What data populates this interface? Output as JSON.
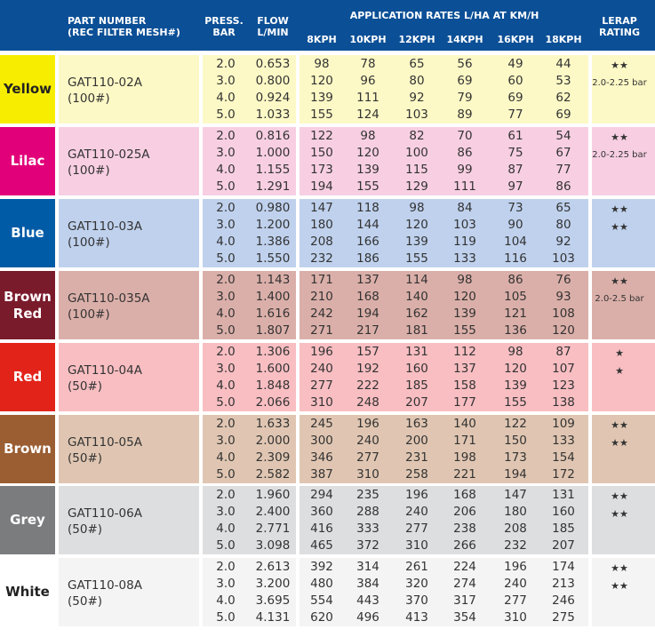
{
  "header": {
    "part": [
      "PART NUMBER",
      "(REC FILTER MESH#)"
    ],
    "press": [
      "PRESS.",
      "BAR"
    ],
    "flow": [
      "FLOW",
      "L/MIN"
    ],
    "rates_title": "APPLICATION RATES L/HA AT KM/H",
    "speeds": [
      "8KPH",
      "10KPH",
      "12KPH",
      "14KPH",
      "16KPH",
      "18KPH"
    ],
    "lerap": [
      "LERAP",
      "RATING"
    ]
  },
  "table": {
    "rows": [
      {
        "color": "Yellow",
        "part": "GAT110-02A",
        "mesh": "(100#)",
        "pressures": [
          "2.0",
          "3.0",
          "4.0",
          "5.0"
        ],
        "flows": [
          "0.653",
          "0.800",
          "0.924",
          "1.033"
        ],
        "rates": [
          [
            "98",
            "78",
            "65",
            "56",
            "49",
            "44"
          ],
          [
            "120",
            "96",
            "80",
            "69",
            "60",
            "53"
          ],
          [
            "139",
            "111",
            "92",
            "79",
            "69",
            "62"
          ],
          [
            "155",
            "124",
            "103",
            "89",
            "77",
            "69"
          ]
        ],
        "lerap": [
          "★★",
          "2.0-2.25 bar"
        ]
      },
      {
        "color": "Lilac",
        "part": "GAT110-025A",
        "mesh": "(100#)",
        "pressures": [
          "2.0",
          "3.0",
          "4.0",
          "5.0"
        ],
        "flows": [
          "0.816",
          "1.000",
          "1.155",
          "1.291"
        ],
        "rates": [
          [
            "122",
            "98",
            "82",
            "70",
            "61",
            "54"
          ],
          [
            "150",
            "120",
            "100",
            "86",
            "75",
            "67"
          ],
          [
            "173",
            "139",
            "115",
            "99",
            "87",
            "77"
          ],
          [
            "194",
            "155",
            "129",
            "111",
            "97",
            "86"
          ]
        ],
        "lerap": [
          "★★",
          "2.0-2.25 bar"
        ]
      },
      {
        "color": "Blue",
        "part": "GAT110-03A",
        "mesh": "(100#)",
        "pressures": [
          "2.0",
          "3.0",
          "4.0",
          "5.0"
        ],
        "flows": [
          "0.980",
          "1.200",
          "1.386",
          "1.550"
        ],
        "rates": [
          [
            "147",
            "118",
            "98",
            "84",
            "73",
            "65"
          ],
          [
            "180",
            "144",
            "120",
            "103",
            "90",
            "80"
          ],
          [
            "208",
            "166",
            "139",
            "119",
            "104",
            "92"
          ],
          [
            "232",
            "186",
            "155",
            "133",
            "116",
            "103"
          ]
        ],
        "lerap": [
          "★★",
          "★★"
        ]
      },
      {
        "color": "Brown Red",
        "part": "GAT110-035A",
        "mesh": "(100#)",
        "pressures": [
          "2.0",
          "3.0",
          "4.0",
          "5.0"
        ],
        "flows": [
          "1.143",
          "1.400",
          "1.616",
          "1.807"
        ],
        "rates": [
          [
            "171",
            "137",
            "114",
            "98",
            "86",
            "76"
          ],
          [
            "210",
            "168",
            "140",
            "120",
            "105",
            "93"
          ],
          [
            "242",
            "194",
            "162",
            "139",
            "121",
            "108"
          ],
          [
            "271",
            "217",
            "181",
            "155",
            "136",
            "120"
          ]
        ],
        "lerap": [
          "★★",
          "2.0-2.5 bar"
        ]
      },
      {
        "color": "Red",
        "part": "GAT110-04A",
        "mesh": "(50#)",
        "pressures": [
          "2.0",
          "3.0",
          "4.0",
          "5.0"
        ],
        "flows": [
          "1.306",
          "1.600",
          "1.848",
          "2.066"
        ],
        "rates": [
          [
            "196",
            "157",
            "131",
            "112",
            "98",
            "87"
          ],
          [
            "240",
            "192",
            "160",
            "137",
            "120",
            "107"
          ],
          [
            "277",
            "222",
            "185",
            "158",
            "139",
            "123"
          ],
          [
            "310",
            "248",
            "207",
            "177",
            "155",
            "138"
          ]
        ],
        "lerap": [
          "★",
          "★"
        ]
      },
      {
        "color": "Brown",
        "part": "GAT110-05A",
        "mesh": "(50#)",
        "pressures": [
          "2.0",
          "3.0",
          "4.0",
          "5.0"
        ],
        "flows": [
          "1.633",
          "2.000",
          "2.309",
          "2.582"
        ],
        "rates": [
          [
            "245",
            "196",
            "163",
            "140",
            "122",
            "109"
          ],
          [
            "300",
            "240",
            "200",
            "171",
            "150",
            "133"
          ],
          [
            "346",
            "277",
            "231",
            "198",
            "173",
            "154"
          ],
          [
            "387",
            "310",
            "258",
            "221",
            "194",
            "172"
          ]
        ],
        "lerap": [
          "★★",
          "★★"
        ]
      },
      {
        "color": "Grey",
        "part": "GAT110-06A",
        "mesh": "(50#)",
        "pressures": [
          "2.0",
          "3.0",
          "4.0",
          "5.0"
        ],
        "flows": [
          "1.960",
          "2.400",
          "2.771",
          "3.098"
        ],
        "rates": [
          [
            "294",
            "235",
            "196",
            "168",
            "147",
            "131"
          ],
          [
            "360",
            "288",
            "240",
            "206",
            "180",
            "160"
          ],
          [
            "416",
            "333",
            "277",
            "238",
            "208",
            "185"
          ],
          [
            "465",
            "372",
            "310",
            "266",
            "232",
            "207"
          ]
        ],
        "lerap": [
          "★★",
          "★★"
        ]
      },
      {
        "color": "White",
        "part": "GAT110-08A",
        "mesh": "(50#)",
        "pressures": [
          "2.0",
          "3.0",
          "4.0",
          "5.0"
        ],
        "flows": [
          "2.613",
          "3.200",
          "3.695",
          "4.131"
        ],
        "rates": [
          [
            "392",
            "314",
            "261",
            "224",
            "196",
            "174"
          ],
          [
            "480",
            "384",
            "320",
            "274",
            "240",
            "213"
          ],
          [
            "554",
            "443",
            "370",
            "317",
            "277",
            "246"
          ],
          [
            "620",
            "496",
            "413",
            "354",
            "310",
            "275"
          ]
        ],
        "lerap": [
          "★★",
          "★★"
        ]
      }
    ]
  }
}
